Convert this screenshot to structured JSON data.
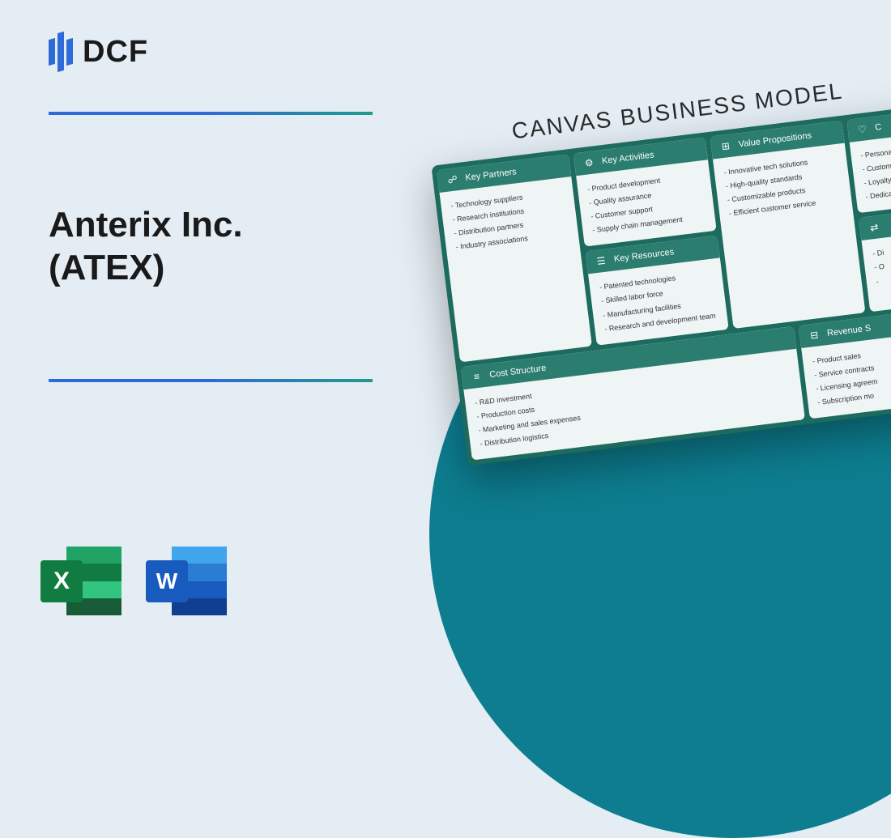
{
  "logo": {
    "text": "DCF"
  },
  "title": {
    "line1": "Anterix Inc.",
    "line2": "(ATEX)"
  },
  "icons": {
    "excel_letter": "X",
    "word_letter": "W"
  },
  "canvas": {
    "title": "CANVAS BUSINESS MODEL",
    "colors": {
      "card_header": "#2a7d6f",
      "card_bg": "#eef5f4",
      "grid_bg": "#1d6b5e",
      "circle_bg": "#0d7d8f"
    },
    "partners": {
      "label": "Key Partners",
      "items": [
        "- Technology suppliers",
        "- Research institutions",
        "- Distribution partners",
        "- Industry associations"
      ]
    },
    "activities": {
      "label": "Key Activities",
      "items": [
        "- Product development",
        "- Quality assurance",
        "- Customer support",
        "- Supply chain management"
      ]
    },
    "resources": {
      "label": "Key Resources",
      "items": [
        "- Patented technologies",
        "- Skilled labor force",
        "- Manufacturing facilities",
        "- Research and development team"
      ]
    },
    "value": {
      "label": "Value Propositions",
      "items": [
        "- Innovative tech solutions",
        "- High-quality standards",
        "- Customizable products",
        "- Efficient customer service"
      ]
    },
    "cust_rel": {
      "label": "C",
      "items": [
        "- Personalize",
        "- Customer",
        "- Loyalty p",
        "- Dedica"
      ]
    },
    "channels": {
      "label": "",
      "items": [
        "- Di",
        "- O",
        "- "
      ]
    },
    "cost": {
      "label": "Cost Structure",
      "items": [
        "- R&D investment",
        "- Production costs",
        "- Marketing and sales expenses",
        "- Distribution logistics"
      ]
    },
    "revenue": {
      "label": "Revenue S",
      "items": [
        "- Product sales",
        "- Service contracts",
        "- Licensing agreem",
        "- Subscription mo"
      ]
    }
  }
}
